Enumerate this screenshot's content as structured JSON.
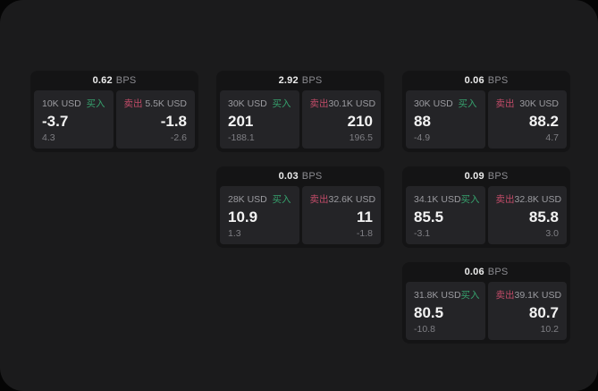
{
  "labels": {
    "bps_unit": "BPS",
    "buy": "买入",
    "sell": "卖出"
  },
  "colors": {
    "buy": "#36a16d",
    "sell": "#c14b68",
    "surface": "#1b1b1c",
    "card": "#141415",
    "panel": "#242427"
  },
  "cards": [
    {
      "bps": "0.62",
      "col": 1,
      "row": 1,
      "buy": {
        "amount": "10K USD",
        "value": "-3.7",
        "sub": "4.3"
      },
      "sell": {
        "amount": "5.5K USD",
        "value": "-1.8",
        "sub": "-2.6"
      }
    },
    {
      "bps": "2.92",
      "col": 2,
      "row": 1,
      "buy": {
        "amount": "30K USD",
        "value": "201",
        "sub": "-188.1"
      },
      "sell": {
        "amount": "30.1K USD",
        "value": "210",
        "sub": "196.5"
      }
    },
    {
      "bps": "0.06",
      "col": 3,
      "row": 1,
      "buy": {
        "amount": "30K USD",
        "value": "88",
        "sub": "-4.9"
      },
      "sell": {
        "amount": "30K USD",
        "value": "88.2",
        "sub": "4.7"
      }
    },
    {
      "bps": "0.03",
      "col": 2,
      "row": 2,
      "buy": {
        "amount": "28K USD",
        "value": "10.9",
        "sub": "1.3"
      },
      "sell": {
        "amount": "32.6K USD",
        "value": "11",
        "sub": "-1.8"
      }
    },
    {
      "bps": "0.09",
      "col": 3,
      "row": 2,
      "buy": {
        "amount": "34.1K USD",
        "value": "85.5",
        "sub": "-3.1"
      },
      "sell": {
        "amount": "32.8K USD",
        "value": "85.8",
        "sub": "3.0"
      }
    },
    {
      "bps": "0.06",
      "col": 3,
      "row": 3,
      "buy": {
        "amount": "31.8K USD",
        "value": "80.5",
        "sub": "-10.8"
      },
      "sell": {
        "amount": "39.1K USD",
        "value": "80.7",
        "sub": "10.2"
      }
    }
  ]
}
